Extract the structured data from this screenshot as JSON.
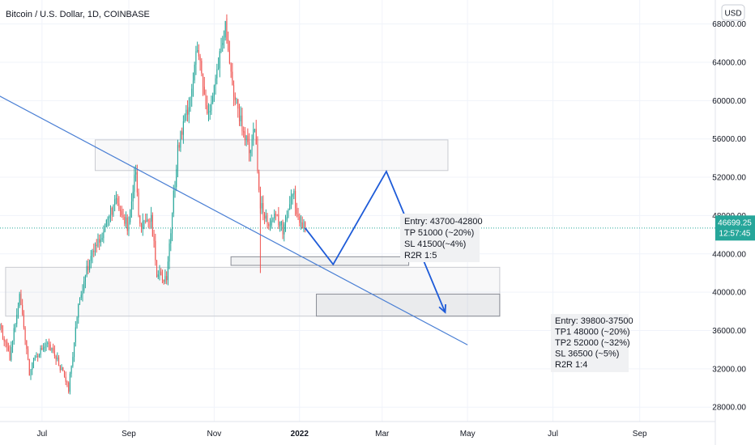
{
  "header": {
    "title": "Bitcoin / U.S. Dollar, 1D, COINBASE",
    "currency_button": "USD"
  },
  "price_label": {
    "price": "46699.25",
    "countdown": "12:57:45",
    "value": 46699.25,
    "color": "#26a69a"
  },
  "annotations": {
    "setup1": [
      "Entry: 43700-42800",
      "TP 51000 (~20%)",
      "SL  41500(~4%)",
      "R2R 1:5"
    ],
    "setup2": [
      "Entry: 39800-37500",
      "TP1 48000 (~20%)",
      "TP2 52000 (~32%)",
      "SL  36500 (~5%)",
      "R2R 1:4"
    ]
  },
  "chart_data": {
    "type": "candlestick",
    "title": "Bitcoin / U.S. Dollar, 1D, COINBASE",
    "y_ticks": [
      "68000.00",
      "64000.00",
      "60000.00",
      "56000.00",
      "52000.00",
      "48000.00",
      "44000.00",
      "40000.00",
      "36000.00",
      "32000.00",
      "28000.00"
    ],
    "y_tick_values": [
      68000,
      64000,
      60000,
      56000,
      52000,
      48000,
      44000,
      40000,
      36000,
      32000,
      28000
    ],
    "ylim": [
      26500,
      70500
    ],
    "x_ticks": [
      "Jul",
      "Sep",
      "Nov",
      "2022",
      "Mar",
      "May",
      "Jul",
      "Sep"
    ],
    "x_tick_dates": [
      "2021-07-01",
      "2021-09-01",
      "2021-11-01",
      "2022-01-01",
      "2022-03-01",
      "2022-05-01",
      "2022-07-01",
      "2022-09-01"
    ],
    "xlim": [
      "2021-06-01",
      "2022-10-25"
    ],
    "up_color": "#26a69a",
    "down_color": "#ef5350",
    "trendline_color": "#4a7fd4",
    "path_color": "#1e5bd8",
    "grid": true,
    "price_anchors": [
      [
        "2021-06-01",
        36500
      ],
      [
        "2021-06-08",
        33000
      ],
      [
        "2021-06-15",
        40000
      ],
      [
        "2021-06-22",
        31500
      ],
      [
        "2021-06-26",
        33500
      ],
      [
        "2021-07-05",
        34500
      ],
      [
        "2021-07-12",
        33000
      ],
      [
        "2021-07-20",
        29800
      ],
      [
        "2021-07-26",
        37500
      ],
      [
        "2021-07-31",
        41500
      ],
      [
        "2021-08-07",
        44500
      ],
      [
        "2021-08-14",
        46500
      ],
      [
        "2021-08-22",
        49500
      ],
      [
        "2021-08-31",
        47000
      ],
      [
        "2021-09-06",
        52500
      ],
      [
        "2021-09-09",
        46500
      ],
      [
        "2021-09-17",
        47500
      ],
      [
        "2021-09-21",
        42000
      ],
      [
        "2021-09-28",
        41500
      ],
      [
        "2021-10-06",
        55000
      ],
      [
        "2021-10-15",
        60500
      ],
      [
        "2021-10-20",
        65500
      ],
      [
        "2021-10-27",
        58500
      ],
      [
        "2021-11-01",
        61500
      ],
      [
        "2021-11-09",
        67500
      ],
      [
        "2021-11-16",
        60000
      ],
      [
        "2021-11-26",
        54500
      ],
      [
        "2021-11-30",
        57500
      ],
      [
        "2021-12-04",
        49000
      ],
      [
        "2021-12-10",
        47500
      ],
      [
        "2021-12-16",
        47800
      ],
      [
        "2021-12-20",
        46500
      ],
      [
        "2021-12-27",
        50800
      ],
      [
        "2022-01-01",
        47300
      ],
      [
        "2022-01-05",
        46700
      ]
    ],
    "trendline": {
      "points": [
        [
          "2021-05-25",
          61000
        ],
        [
          "2022-05-01",
          34500
        ]
      ]
    },
    "projected_path": {
      "points": [
        [
          "2022-01-05",
          46700
        ],
        [
          "2022-01-25",
          42900
        ],
        [
          "2022-03-04",
          52600
        ],
        [
          "2022-04-15",
          37900
        ]
      ]
    },
    "zones": [
      {
        "name": "resistance-zone",
        "x": [
          "2021-08-08",
          "2022-04-17"
        ],
        "y": [
          52700,
          55900
        ]
      },
      {
        "name": "support-zone",
        "x": [
          "2021-06-05",
          "2022-05-24"
        ],
        "y": [
          37500,
          42600
        ]
      },
      {
        "name": "entry1-zone",
        "x": [
          "2021-11-13",
          "2022-03-20"
        ],
        "y": [
          42800,
          43700
        ]
      },
      {
        "name": "entry2-zone",
        "x": [
          "2022-01-13",
          "2022-05-24"
        ],
        "y": [
          37500,
          39800
        ]
      }
    ]
  }
}
